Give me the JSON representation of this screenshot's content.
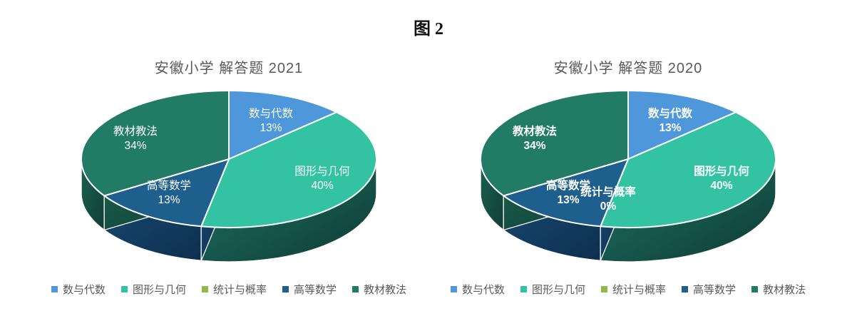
{
  "figure_title": "图 2",
  "styles": {
    "title_text_color": "#595959",
    "legend_text_color": "#595959",
    "slice_label_color": "#ffffff",
    "slice_separator_color": "#ffffff",
    "background": "#ffffff"
  },
  "categories": [
    {
      "key": "numbers-algebra",
      "label": "数与代数",
      "color": "#4E97DA",
      "side": [
        "#2E6FA6",
        "#1F4E79"
      ]
    },
    {
      "key": "shapes-geometry",
      "label": "图形与几何",
      "color": "#33C3A3",
      "side": [
        "#1F7466",
        "#0E3A33"
      ]
    },
    {
      "key": "statistics-probability",
      "label": "统计与概率",
      "color": "#8FBA49",
      "side": [
        "#6E9433",
        "#4F6B24"
      ]
    },
    {
      "key": "higher-math",
      "label": "高等数学",
      "color": "#1F5F8E",
      "side": [
        "#174872",
        "#0E2F4E"
      ]
    },
    {
      "key": "teaching-methods",
      "label": "教材教法",
      "color": "#217B65",
      "side": [
        "#1B6151",
        "#113E33"
      ]
    }
  ],
  "chart_data": [
    {
      "type": "pie",
      "style": "3d",
      "title": "安徽小学 解答题 2021",
      "categories": [
        "数与代数",
        "图形与几何",
        "统计与概率",
        "高等数学",
        "教材教法"
      ],
      "values_percent": [
        13,
        40,
        0,
        13,
        34
      ],
      "data_labels": [
        "数与代数 13%",
        "图形与几何 40%",
        "高等数学 13%",
        "教材教法 34%"
      ],
      "show_zero_label": false,
      "label_weight": "regular",
      "start_angle_deg": 0,
      "direction": "clockwise",
      "legend_position": "bottom",
      "legend": [
        "数与代数",
        "图形与几何",
        "统计与概率",
        "高等数学",
        "教材教法"
      ]
    },
    {
      "type": "pie",
      "style": "3d",
      "title": "安徽小学 解答题 2020",
      "categories": [
        "数与代数",
        "图形与几何",
        "统计与概率",
        "高等数学",
        "教材教法"
      ],
      "values_percent": [
        13,
        40,
        0,
        13,
        34
      ],
      "data_labels": [
        "数与代数 13%",
        "图形与几何 40%",
        "统计与概率 0%",
        "高等数学 13%",
        "教材教法 34%"
      ],
      "show_zero_label": true,
      "label_weight": "bold",
      "start_angle_deg": 0,
      "direction": "clockwise",
      "legend_position": "bottom",
      "legend": [
        "数与代数",
        "图形与几何",
        "统计与概率",
        "高等数学",
        "教材教法"
      ]
    }
  ]
}
